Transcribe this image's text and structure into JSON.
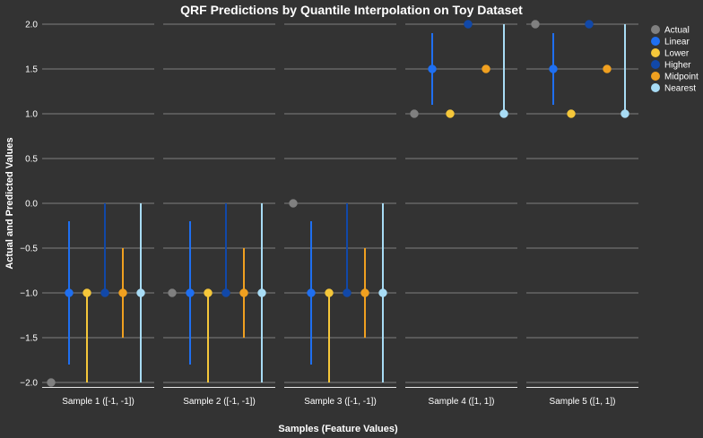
{
  "chart_data": {
    "type": "scatter",
    "title": "QRF Predictions by Quantile Interpolation on Toy Dataset",
    "xlabel": "Samples (Feature Values)",
    "ylabel": "Actual and Predicted Values",
    "ylim": [
      -2.0,
      2.0
    ],
    "yticks": [
      "2.0",
      "1.5",
      "1.0",
      "0.5",
      "0.0",
      "−0.5",
      "−1.0",
      "−1.5",
      "−2.0"
    ],
    "ytick_values": [
      2.0,
      1.5,
      1.0,
      0.5,
      0.0,
      -0.5,
      -1.0,
      -1.5,
      -2.0
    ],
    "grid": true,
    "legend_position": "right",
    "categories": [
      "Sample 1 ([-1, -1])",
      "Sample 2 ([-1, -1])",
      "Sample 3 ([-1, -1])",
      "Sample 4 ([1, 1])",
      "Sample 5 ([1, 1])"
    ],
    "series": [
      {
        "name": "Actual",
        "color": "#808080",
        "values": [
          -2.0,
          -1.0,
          0.0,
          1.0,
          2.0
        ],
        "lower": null,
        "upper": null
      },
      {
        "name": "Linear",
        "color": "#1f6ff0",
        "values": [
          -1.0,
          -1.0,
          -1.0,
          1.5,
          1.5
        ],
        "lower": [
          -1.8,
          -1.8,
          -1.8,
          1.1,
          1.1
        ],
        "upper": [
          -0.2,
          -0.2,
          -0.2,
          1.9,
          1.9
        ]
      },
      {
        "name": "Lower",
        "color": "#f5c73a",
        "values": [
          -1.0,
          -1.0,
          -1.0,
          1.0,
          1.0
        ],
        "lower": [
          -2.0,
          -2.0,
          -2.0,
          1.0,
          1.0
        ],
        "upper": [
          -1.0,
          -1.0,
          -1.0,
          1.0,
          1.0
        ]
      },
      {
        "name": "Higher",
        "color": "#1148a8",
        "values": [
          -1.0,
          -1.0,
          -1.0,
          2.0,
          2.0
        ],
        "lower": [
          -1.0,
          -1.0,
          -1.0,
          2.0,
          2.0
        ],
        "upper": [
          0.0,
          0.0,
          0.0,
          2.0,
          2.0
        ]
      },
      {
        "name": "Midpoint",
        "color": "#f0a020",
        "values": [
          -1.0,
          -1.0,
          -1.0,
          1.5,
          1.5
        ],
        "lower": [
          -1.5,
          -1.5,
          -1.5,
          1.5,
          1.5
        ],
        "upper": [
          -0.5,
          -0.5,
          -0.5,
          1.5,
          1.5
        ]
      },
      {
        "name": "Nearest",
        "color": "#a8dcf5",
        "values": [
          -1.0,
          -1.0,
          -1.0,
          1.0,
          1.0
        ],
        "lower": [
          -2.0,
          -2.0,
          -2.0,
          1.0,
          1.0
        ],
        "upper": [
          0.0,
          0.0,
          0.0,
          2.0,
          2.0
        ]
      }
    ]
  }
}
